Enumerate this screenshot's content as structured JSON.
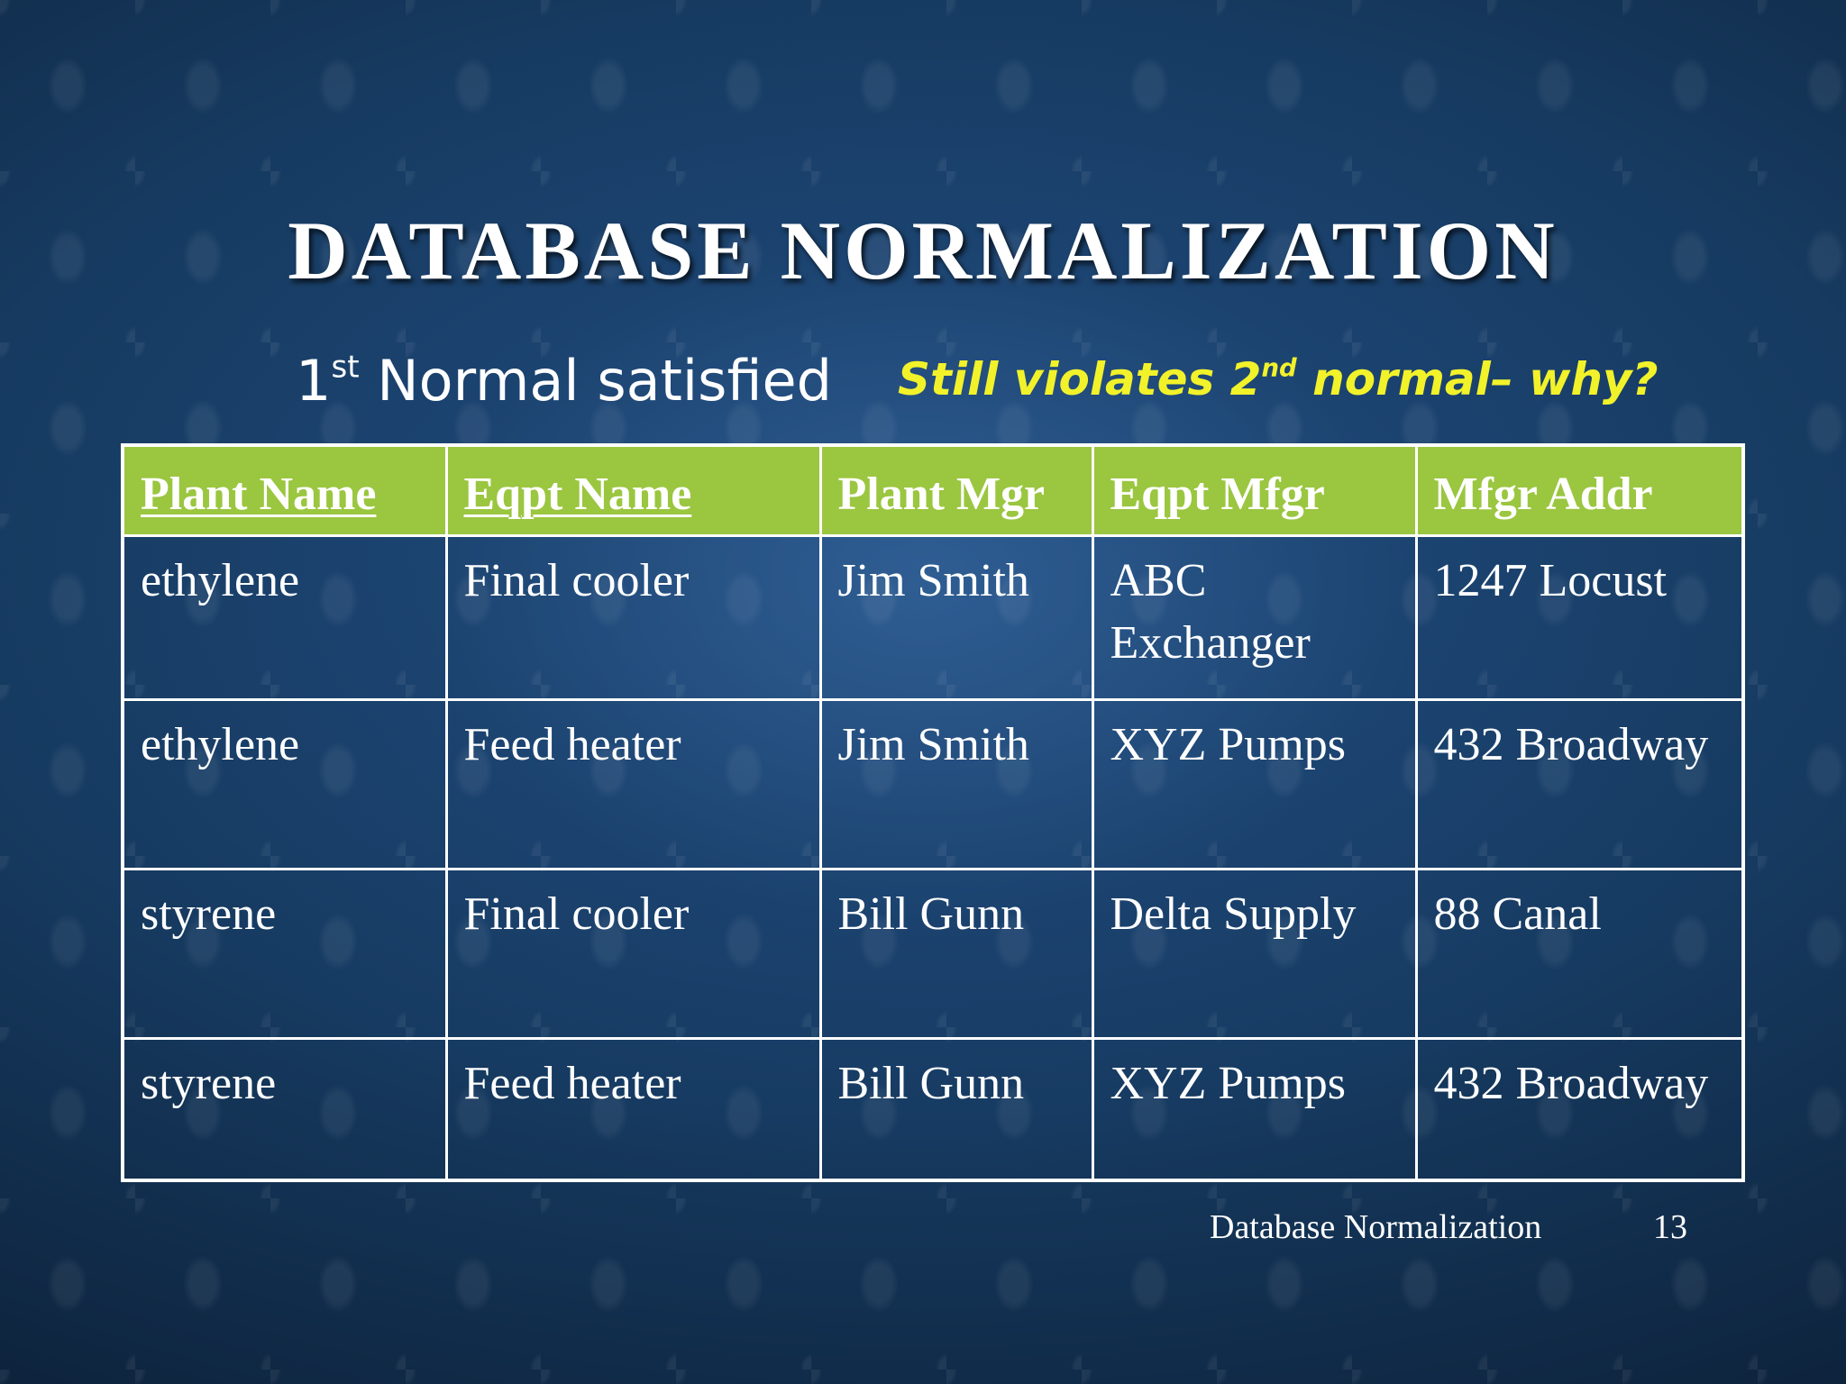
{
  "slide": {
    "title": "DATABASE NORMALIZATION",
    "subtitle_left": {
      "number": "1",
      "superscript": "st",
      "text": " Normal satisfied"
    },
    "subtitle_right": {
      "before": "Still violates 2",
      "superscript": "nd",
      "after": " normal– why?",
      "color": "#f2f22a"
    },
    "header_color": "#9bc640",
    "footer": {
      "label": "Database Normalization",
      "page_number": "13"
    }
  },
  "table": {
    "headers": [
      "Plant Name",
      "Eqpt Name",
      "Plant Mgr",
      "Eqpt Mfgr",
      "Mfgr Addr"
    ],
    "key_columns": [
      "Plant Name",
      "Eqpt Name"
    ],
    "rows": [
      [
        "ethylene",
        "Final cooler",
        "Jim Smith",
        "ABC Exchanger",
        "1247 Locust"
      ],
      [
        "ethylene",
        "Feed heater",
        "Jim Smith",
        "XYZ Pumps",
        "432 Broadway"
      ],
      [
        "styrene",
        "Final cooler",
        "Bill Gunn",
        "Delta Supply",
        "88 Canal"
      ],
      [
        "styrene",
        "Feed heater",
        "Bill Gunn",
        "XYZ Pumps",
        "432 Broadway"
      ]
    ]
  }
}
